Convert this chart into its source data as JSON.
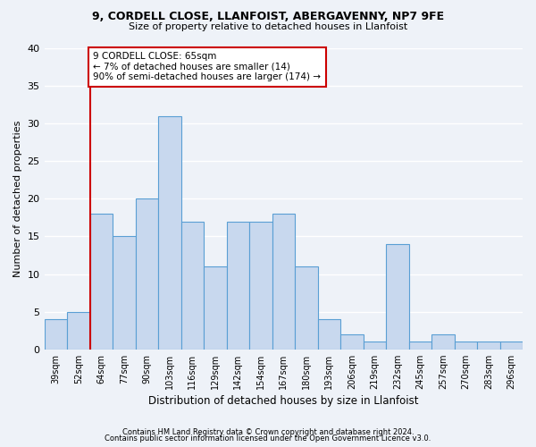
{
  "title1": "9, CORDELL CLOSE, LLANFOIST, ABERGAVENNY, NP7 9FE",
  "title2": "Size of property relative to detached houses in Llanfoist",
  "xlabel": "Distribution of detached houses by size in Llanfoist",
  "ylabel": "Number of detached properties",
  "footnote1": "Contains HM Land Registry data © Crown copyright and database right 2024.",
  "footnote2": "Contains public sector information licensed under the Open Government Licence v3.0.",
  "categories": [
    "39sqm",
    "52sqm",
    "64sqm",
    "77sqm",
    "90sqm",
    "103sqm",
    "116sqm",
    "129sqm",
    "142sqm",
    "154sqm",
    "167sqm",
    "180sqm",
    "193sqm",
    "206sqm",
    "219sqm",
    "232sqm",
    "245sqm",
    "257sqm",
    "270sqm",
    "283sqm",
    "296sqm"
  ],
  "values": [
    4,
    5,
    18,
    15,
    20,
    31,
    17,
    11,
    17,
    17,
    18,
    11,
    4,
    2,
    1,
    14,
    1,
    2,
    1,
    1,
    1
  ],
  "bar_color": "#c8d8ee",
  "bar_edge_color": "#5a9fd4",
  "annotation_line1": "9 CORDELL CLOSE: 65sqm",
  "annotation_line2": "← 7% of detached houses are smaller (14)",
  "annotation_line3": "90% of semi-detached houses are larger (174) →",
  "annotation_box_color": "#ffffff",
  "annotation_box_edge_color": "#cc0000",
  "vline_color": "#cc0000",
  "vline_x_idx": 2,
  "background_color": "#eef2f8",
  "grid_color": "#ffffff",
  "ylim": [
    0,
    40
  ],
  "yticks": [
    0,
    5,
    10,
    15,
    20,
    25,
    30,
    35,
    40
  ]
}
